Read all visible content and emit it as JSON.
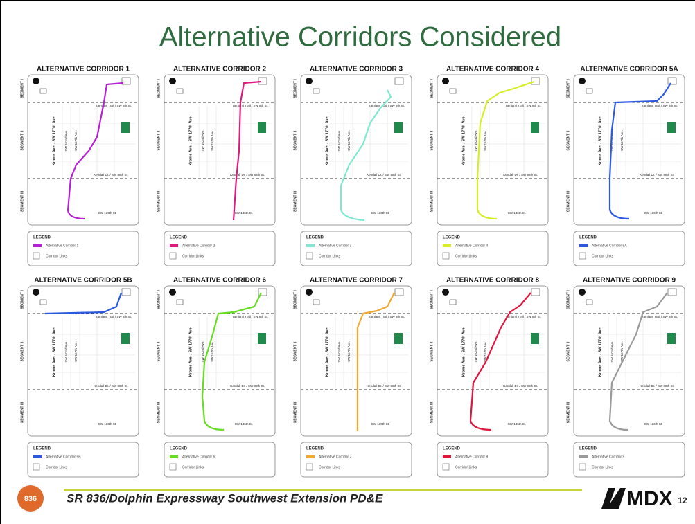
{
  "title": "Alternative Corridors Considered",
  "map_labels": {
    "segment_1": "SEGMENT I",
    "segment_2": "SEGMENT II",
    "segment_3": "SEGMENT III",
    "krome": "Krome Ave. / SW 177th Ave.",
    "sw162": "SW 162nd Ave.",
    "sw157": "SW 157th Ave.",
    "tamiami": "Tamiami Trail / SW 8th St.",
    "kendall": "Kendall Dr. / SW 88th St.",
    "sw136": "SW 136th St.",
    "legend": "LEGEND",
    "links": "Corridor Links"
  },
  "panels": [
    {
      "title": "ALTERNATIVE CORRIDOR 1",
      "legend": "Alternative Corridor 1",
      "color": "#b61fd6"
    },
    {
      "title": "ALTERNATIVE CORRIDOR 2",
      "legend": "Alternative Corridor 2",
      "color": "#e0197d"
    },
    {
      "title": "ALTERNATIVE CORRIDOR 3",
      "legend": "Alternative Corridor 3",
      "color": "#7fe8cf"
    },
    {
      "title": "ALTERNATIVE CORRIDOR 4",
      "legend": "Alternative Corridor 4",
      "color": "#d7ee27"
    },
    {
      "title": "ALTERNATIVE CORRIDOR 5A",
      "legend": "Alternative Corridor 5A",
      "color": "#2b59e0"
    },
    {
      "title": "ALTERNATIVE CORRIDOR 5B",
      "legend": "Alternative Corridor 5B",
      "color": "#2b59e0"
    },
    {
      "title": "ALTERNATIVE CORRIDOR 6",
      "legend": "Alternative Corridor 6",
      "color": "#66dd22"
    },
    {
      "title": "ALTERNATIVE CORRIDOR 7",
      "legend": "Alternative Corridor 7",
      "color": "#f0a830"
    },
    {
      "title": "ALTERNATIVE CORRIDOR 8",
      "legend": "Alternative Corridor 8",
      "color": "#e0143c"
    },
    {
      "title": "ALTERNATIVE CORRIDOR 9",
      "legend": "Alternative Corridor 9",
      "color": "#9a9a9a"
    }
  ],
  "footer": {
    "shield": "836",
    "project": "SR 836/Dolphin Expressway Southwest Extension PD&E",
    "logo": "MDX",
    "page": "12"
  }
}
